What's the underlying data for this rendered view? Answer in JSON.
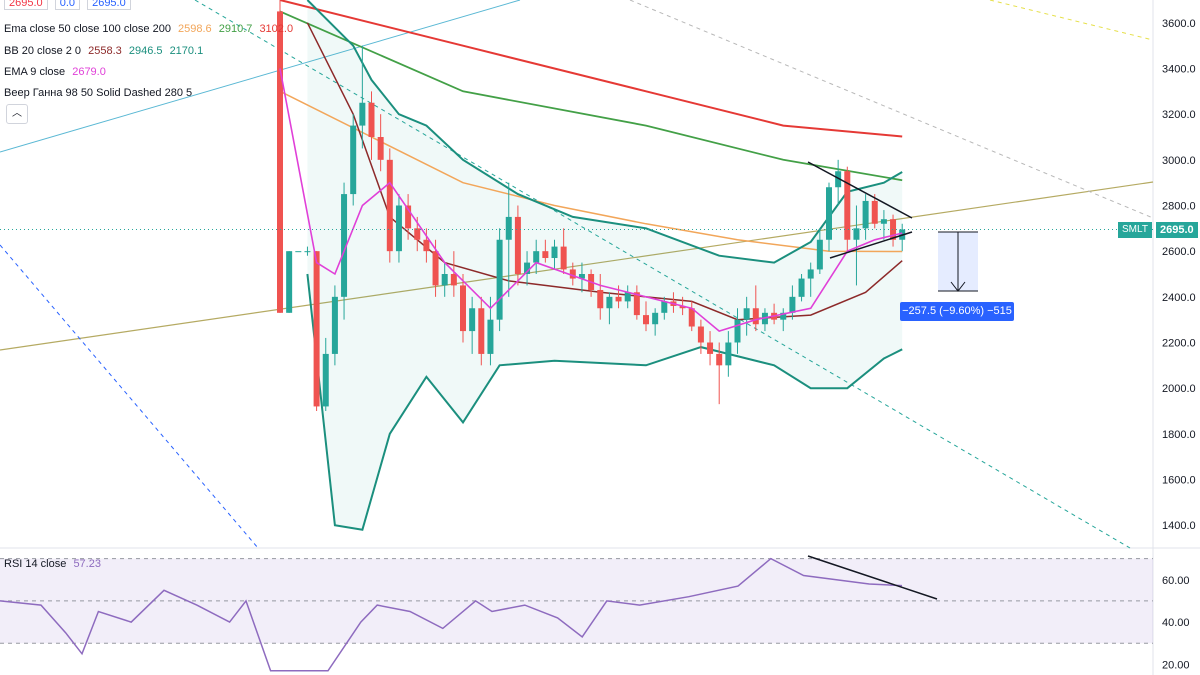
{
  "header": {
    "ohlc_values": [
      "2695.0",
      "0.0",
      "2695.0"
    ],
    "ema_legend": {
      "label": "Ema close 50 close 100 close 200",
      "v50": "2598.6",
      "v100": "2910.7",
      "v200": "3102.0"
    },
    "bb_legend": {
      "label": "BB 20 close 2 0",
      "basis": "2558.3",
      "upper": "2946.5",
      "lower": "2170.1"
    },
    "ema9_legend": {
      "label": "EMA 9 close",
      "value": "2679.0"
    },
    "gann_legend": {
      "label": "Веер Ганна 98 50 Solid Dashed 280 5"
    },
    "collapse_icon": "chevron-up-icon"
  },
  "price_axis": {
    "ticks": [
      "3600.0",
      "3400.0",
      "3200.0",
      "3000.0",
      "2800.0",
      "2600.0",
      "2400.0",
      "2200.0",
      "2000.0",
      "1800.0",
      "1600.0",
      "1400.0"
    ]
  },
  "last_price": {
    "symbol": "SMLT",
    "value": "2695.0"
  },
  "measure_label": "−257.5 (−9.60%) −515",
  "rsi": {
    "legend_label": "RSI 14 close",
    "legend_value": "57.23",
    "ticks": [
      "60.00",
      "40.00",
      "20.00"
    ],
    "levels": [
      70,
      50,
      30
    ]
  },
  "colors": {
    "up": "#26a69a",
    "down": "#ef5350",
    "ema50": "#f2a65a",
    "ema100": "#43a047",
    "ema200": "#e53935",
    "bb": "#1b8f7e",
    "bb_basis": "#8d2a2a",
    "ema9": "#e040d8",
    "rsi": "#8e6bbf",
    "accent": "#2962ff"
  },
  "chart_data": {
    "type": "candlestick",
    "ylim": [
      1300,
      3700
    ],
    "candles": [
      [
        3650,
        3700,
        2330,
        2330
      ],
      [
        2330,
        2600,
        2330,
        2600
      ],
      [
        2600,
        2600,
        2600,
        2600
      ],
      [
        2600,
        2620,
        2580,
        2600
      ],
      [
        2600,
        2600,
        1900,
        1920
      ],
      [
        1920,
        2220,
        1900,
        2150
      ],
      [
        2150,
        2450,
        2100,
        2400
      ],
      [
        2400,
        2900,
        2300,
        2850
      ],
      [
        2850,
        3200,
        2800,
        3150
      ],
      [
        3150,
        3500,
        3050,
        3250
      ],
      [
        3250,
        3300,
        3000,
        3100
      ],
      [
        3100,
        3200,
        2950,
        3000
      ],
      [
        3000,
        3050,
        2550,
        2600
      ],
      [
        2600,
        2850,
        2550,
        2800
      ],
      [
        2800,
        2850,
        2650,
        2700
      ],
      [
        2700,
        2750,
        2600,
        2650
      ],
      [
        2650,
        2700,
        2550,
        2600
      ],
      [
        2600,
        2650,
        2400,
        2450
      ],
      [
        2450,
        2550,
        2400,
        2500
      ],
      [
        2500,
        2600,
        2400,
        2450
      ],
      [
        2450,
        2500,
        2200,
        2250
      ],
      [
        2250,
        2400,
        2150,
        2350
      ],
      [
        2350,
        2400,
        2100,
        2150
      ],
      [
        2150,
        2400,
        2100,
        2300
      ],
      [
        2300,
        2700,
        2250,
        2650
      ],
      [
        2650,
        2900,
        2400,
        2750
      ],
      [
        2750,
        2800,
        2450,
        2500
      ],
      [
        2500,
        2600,
        2450,
        2550
      ],
      [
        2550,
        2650,
        2500,
        2600
      ],
      [
        2600,
        2650,
        2550,
        2570
      ],
      [
        2570,
        2650,
        2520,
        2620
      ],
      [
        2620,
        2700,
        2500,
        2520
      ],
      [
        2520,
        2550,
        2450,
        2480
      ],
      [
        2480,
        2550,
        2420,
        2500
      ],
      [
        2500,
        2520,
        2400,
        2430
      ],
      [
        2430,
        2500,
        2300,
        2350
      ],
      [
        2350,
        2420,
        2280,
        2400
      ],
      [
        2400,
        2450,
        2350,
        2380
      ],
      [
        2380,
        2450,
        2350,
        2420
      ],
      [
        2420,
        2450,
        2300,
        2320
      ],
      [
        2320,
        2380,
        2250,
        2280
      ],
      [
        2280,
        2350,
        2230,
        2330
      ],
      [
        2330,
        2400,
        2300,
        2380
      ],
      [
        2380,
        2420,
        2330,
        2360
      ],
      [
        2360,
        2400,
        2320,
        2350
      ],
      [
        2350,
        2380,
        2250,
        2270
      ],
      [
        2270,
        2300,
        2150,
        2200
      ],
      [
        2200,
        2250,
        2100,
        2150
      ],
      [
        2150,
        2200,
        1930,
        2100
      ],
      [
        2100,
        2250,
        2050,
        2200
      ],
      [
        2200,
        2350,
        2150,
        2300
      ],
      [
        2300,
        2400,
        2230,
        2350
      ],
      [
        2350,
        2450,
        2250,
        2280
      ],
      [
        2280,
        2350,
        2250,
        2330
      ],
      [
        2330,
        2370,
        2280,
        2300
      ],
      [
        2300,
        2350,
        2250,
        2330
      ],
      [
        2330,
        2450,
        2300,
        2400
      ],
      [
        2400,
        2500,
        2380,
        2480
      ],
      [
        2480,
        2550,
        2400,
        2520
      ],
      [
        2520,
        2700,
        2500,
        2650
      ],
      [
        2650,
        2900,
        2600,
        2880
      ],
      [
        2880,
        3000,
        2800,
        2950
      ],
      [
        2950,
        2970,
        2600,
        2650
      ],
      [
        2650,
        2800,
        2450,
        2700
      ],
      [
        2700,
        2850,
        2650,
        2820
      ],
      [
        2820,
        2850,
        2700,
        2720
      ],
      [
        2720,
        2780,
        2650,
        2740
      ],
      [
        2740,
        2760,
        2620,
        2650
      ],
      [
        2650,
        2720,
        2600,
        2695
      ]
    ],
    "ema50": [
      [
        0,
        3300
      ],
      [
        10,
        3100
      ],
      [
        20,
        2900
      ],
      [
        30,
        2800
      ],
      [
        40,
        2720
      ],
      [
        50,
        2650
      ],
      [
        60,
        2600
      ],
      [
        68,
        2598.6
      ]
    ],
    "ema100": [
      [
        0,
        3650
      ],
      [
        20,
        3300
      ],
      [
        40,
        3150
      ],
      [
        55,
        3000
      ],
      [
        68,
        2910.7
      ]
    ],
    "ema200": [
      [
        0,
        3700
      ],
      [
        20,
        3500
      ],
      [
        40,
        3300
      ],
      [
        55,
        3150
      ],
      [
        68,
        3102
      ]
    ],
    "ema9": [
      [
        0,
        3400
      ],
      [
        4,
        2550
      ],
      [
        6,
        2500
      ],
      [
        9,
        2800
      ],
      [
        12,
        2900
      ],
      [
        18,
        2550
      ],
      [
        23,
        2350
      ],
      [
        28,
        2550
      ],
      [
        35,
        2450
      ],
      [
        45,
        2350
      ],
      [
        48,
        2250
      ],
      [
        52,
        2300
      ],
      [
        58,
        2350
      ],
      [
        62,
        2600
      ],
      [
        65,
        2650
      ],
      [
        68,
        2679
      ]
    ],
    "bb_upper": [
      [
        3,
        3700
      ],
      [
        8,
        3500
      ],
      [
        10,
        3350
      ],
      [
        13,
        3200
      ],
      [
        16,
        3150
      ],
      [
        20,
        3000
      ],
      [
        26,
        2850
      ],
      [
        32,
        2750
      ],
      [
        40,
        2700
      ],
      [
        48,
        2580
      ],
      [
        54,
        2550
      ],
      [
        58,
        2640
      ],
      [
        62,
        2860
      ],
      [
        66,
        2900
      ],
      [
        68,
        2946.5
      ]
    ],
    "bb_lower": [
      [
        3,
        2500
      ],
      [
        6,
        1400
      ],
      [
        9,
        1380
      ],
      [
        12,
        1800
      ],
      [
        16,
        2050
      ],
      [
        20,
        1850
      ],
      [
        24,
        2100
      ],
      [
        30,
        2120
      ],
      [
        40,
        2100
      ],
      [
        46,
        2180
      ],
      [
        54,
        2100
      ],
      [
        58,
        2000
      ],
      [
        62,
        2000
      ],
      [
        66,
        2130
      ],
      [
        68,
        2170.1
      ]
    ],
    "bb_basis": [
      [
        3,
        3600
      ],
      [
        8,
        3200
      ],
      [
        12,
        2750
      ],
      [
        18,
        2550
      ],
      [
        25,
        2470
      ],
      [
        35,
        2420
      ],
      [
        45,
        2380
      ],
      [
        50,
        2300
      ],
      [
        58,
        2320
      ],
      [
        64,
        2420
      ],
      [
        68,
        2558.3
      ]
    ],
    "rsi_values": [
      [
        0,
        50
      ],
      [
        5,
        48
      ],
      [
        8,
        35
      ],
      [
        10,
        25
      ],
      [
        12,
        45
      ],
      [
        16,
        40
      ],
      [
        20,
        55
      ],
      [
        24,
        48
      ],
      [
        28,
        40
      ],
      [
        30,
        50
      ],
      [
        33,
        17
      ],
      [
        40,
        17
      ],
      [
        44,
        40
      ],
      [
        46,
        48
      ],
      [
        50,
        45
      ],
      [
        54,
        37
      ],
      [
        58,
        50
      ],
      [
        60,
        45
      ],
      [
        64,
        48
      ],
      [
        68,
        42
      ],
      [
        71,
        33
      ],
      [
        74,
        50
      ],
      [
        78,
        48
      ],
      [
        84,
        52
      ],
      [
        90,
        57
      ],
      [
        94,
        70
      ],
      [
        98,
        62
      ],
      [
        102,
        60
      ],
      [
        106,
        58
      ],
      [
        110,
        57.23
      ]
    ]
  }
}
